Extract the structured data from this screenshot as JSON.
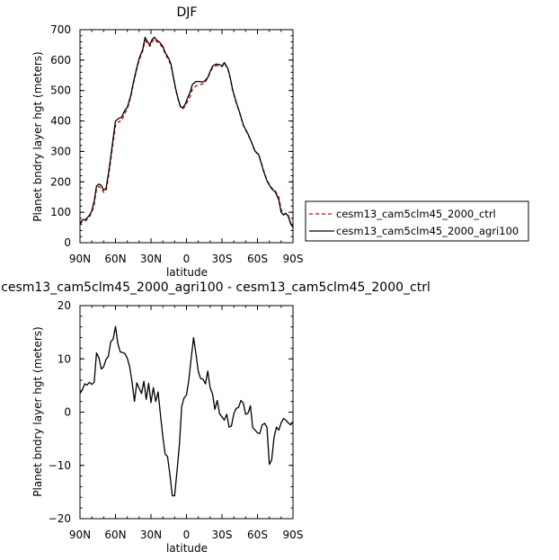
{
  "chart_data": [
    {
      "type": "line",
      "title": "DJF",
      "xlabel": "latitude",
      "ylabel": "Planet bndry layer hgt (meters)",
      "xlim": [
        90,
        -90
      ],
      "ylim": [
        0,
        700
      ],
      "x_tick_values": [
        90,
        60,
        30,
        0,
        -30,
        -60,
        -90
      ],
      "x_tick_labels": [
        "90N",
        "60N",
        "30N",
        "0",
        "30S",
        "60S",
        "90S"
      ],
      "y_tick_values": [
        0,
        100,
        200,
        300,
        400,
        500,
        600,
        700
      ],
      "y_tick_labels": [
        "0",
        "100",
        "200",
        "300",
        "400",
        "500",
        "600",
        "700"
      ],
      "grid": false,
      "legend_position": "right",
      "series": [
        {
          "name": "cesm13_cam5clm45_2000_ctrl",
          "color": "#cc0000",
          "dash": "dashed",
          "x": [
            90,
            88,
            85,
            82,
            80,
            78,
            76,
            74,
            72,
            70,
            68,
            66,
            64,
            62,
            60,
            57,
            55,
            52,
            50,
            47,
            45,
            42,
            40,
            37,
            35,
            33,
            31,
            29,
            27,
            25,
            23,
            20,
            18,
            15,
            13,
            11,
            9,
            7,
            5,
            3,
            1,
            -1,
            -3,
            -5,
            -8,
            -10,
            -13,
            -15,
            -18,
            -20,
            -22,
            -25,
            -28,
            -30,
            -32,
            -35,
            -37,
            -39,
            -42,
            -45,
            -48,
            -52,
            -55,
            -58,
            -61,
            -65,
            -68,
            -72,
            -75,
            -78,
            -80,
            -82,
            -84,
            -86,
            -88,
            -90
          ],
          "y": [
            60,
            70,
            72,
            85,
            100,
            125,
            178,
            185,
            180,
            165,
            170,
            215,
            270,
            330,
            385,
            398,
            400,
            425,
            440,
            480,
            520,
            570,
            600,
            630,
            665,
            655,
            645,
            660,
            670,
            660,
            655,
            640,
            620,
            600,
            580,
            540,
            500,
            470,
            445,
            440,
            450,
            465,
            480,
            505,
            515,
            520,
            520,
            525,
            540,
            560,
            575,
            582,
            580,
            578,
            590,
            570,
            540,
            500,
            460,
            425,
            385,
            355,
            330,
            298,
            290,
            240,
            205,
            180,
            170,
            150,
            110,
            92,
            98,
            90,
            65,
            52
          ]
        },
        {
          "name": "cesm13_cam5clm45_2000_agri100",
          "color": "#000000",
          "dash": "solid",
          "x": [
            90,
            88,
            85,
            82,
            80,
            78,
            76,
            74,
            72,
            70,
            68,
            66,
            64,
            62,
            60,
            57,
            55,
            52,
            50,
            47,
            45,
            42,
            40,
            37,
            35,
            33,
            31,
            29,
            27,
            25,
            23,
            20,
            18,
            15,
            13,
            11,
            9,
            7,
            5,
            3,
            1,
            -1,
            -3,
            -5,
            -8,
            -10,
            -13,
            -15,
            -18,
            -20,
            -22,
            -25,
            -28,
            -30,
            -32,
            -35,
            -37,
            -39,
            -42,
            -45,
            -48,
            -52,
            -55,
            -58,
            -61,
            -65,
            -68,
            -72,
            -75,
            -78,
            -80,
            -82,
            -84,
            -86,
            -88,
            -90
          ],
          "y": [
            63,
            74,
            77,
            90,
            105,
            137,
            186,
            193,
            188,
            173,
            178,
            226,
            281,
            343,
            400,
            409,
            411,
            435,
            445,
            485,
            525,
            575,
            605,
            635,
            675,
            660,
            650,
            668,
            675,
            665,
            660,
            645,
            625,
            605,
            585,
            543,
            503,
            472,
            447,
            443,
            456,
            476,
            494,
            520,
            530,
            530,
            528,
            530,
            543,
            562,
            580,
            587,
            585,
            580,
            592,
            572,
            542,
            502,
            462,
            427,
            387,
            357,
            330,
            300,
            290,
            237,
            203,
            177,
            167,
            141,
            100,
            91,
            96,
            87,
            62,
            50
          ]
        }
      ]
    },
    {
      "type": "line",
      "title": "cesm13_cam5clm45_2000_agri100 - cesm13_cam5clm45_2000_ctrl",
      "xlabel": "latitude",
      "ylabel": "Planet bndry layer hgt (meters)",
      "xlim": [
        90,
        -90
      ],
      "ylim": [
        -20,
        20
      ],
      "x_tick_values": [
        90,
        60,
        30,
        0,
        -30,
        -60,
        -90
      ],
      "x_tick_labels": [
        "90N",
        "60N",
        "30N",
        "0",
        "30S",
        "60S",
        "90S"
      ],
      "y_tick_values": [
        -20,
        -10,
        0,
        10,
        20
      ],
      "y_tick_labels": [
        "−20",
        "−10",
        "0",
        "10",
        "20"
      ],
      "grid": false,
      "series": [
        {
          "color": "#000000",
          "x": [
            90,
            88,
            86,
            84,
            82,
            80,
            78,
            76,
            74,
            72,
            70,
            68,
            66,
            64,
            62,
            60,
            58,
            56,
            54,
            52,
            50,
            48,
            46,
            44,
            42,
            40,
            38,
            36,
            34,
            32,
            30,
            28,
            26,
            24,
            22,
            20,
            18,
            16,
            14,
            12,
            10,
            8,
            6,
            4,
            2,
            0,
            -2,
            -4,
            -6,
            -8,
            -10,
            -12,
            -14,
            -16,
            -18,
            -20,
            -22,
            -24,
            -26,
            -28,
            -30,
            -32,
            -34,
            -36,
            -38,
            -40,
            -42,
            -44,
            -46,
            -48,
            -50,
            -52,
            -54,
            -56,
            -58,
            -60,
            -62,
            -64,
            -66,
            -68,
            -70,
            -72,
            -74,
            -76,
            -78,
            -80,
            -82,
            -84,
            -86,
            -88,
            -90
          ],
          "y": [
            3.5,
            4.2,
            5.3,
            5.1,
            5.6,
            5.2,
            5.6,
            11.1,
            10.2,
            8.1,
            8.5,
            9.9,
            10.5,
            13.2,
            13.7,
            16.1,
            12.9,
            11.3,
            11.2,
            11.0,
            10.1,
            8.5,
            5.7,
            2.0,
            5.5,
            4.5,
            3.5,
            5.8,
            2.4,
            5.4,
            1.8,
            4.6,
            2.0,
            3.8,
            -0.4,
            -4.6,
            -7.9,
            -8.3,
            -11.8,
            -15.7,
            -15.7,
            -11.0,
            -6.2,
            1.1,
            2.7,
            3.2,
            6.0,
            10.2,
            14.0,
            11.0,
            7.6,
            6.3,
            6.2,
            5.3,
            7.7,
            4.6,
            3.4,
            0.5,
            2.2,
            -0.3,
            -0.9,
            -1.5,
            -0.4,
            -2.8,
            -2.6,
            -0.3,
            0.7,
            0.9,
            2.2,
            1.7,
            -0.4,
            -0.2,
            1.2,
            -2.9,
            -3.4,
            -3.9,
            -4.0,
            -2.4,
            -2.1,
            -2.8,
            -9.8,
            -9.0,
            -4.8,
            -2.8,
            -3.4,
            -2.0,
            -1.2,
            -1.5,
            -2.0,
            -2.4,
            -1.8
          ]
        }
      ]
    }
  ]
}
